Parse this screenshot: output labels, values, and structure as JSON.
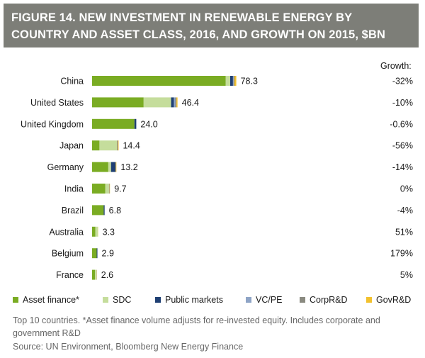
{
  "figure_title": "FIGURE 14. NEW INVESTMENT IN RENEWABLE ENERGY BY COUNTRY AND ASSET CLASS, 2016, AND GROWTH ON 2015, $BN",
  "growth_header": "Growth:",
  "note": "Top 10 countries. *Asset finance volume adjusts for re-invested equity. Includes corporate and government R&D",
  "source": "Source: UN Environment, Bloomberg New Energy Finance",
  "chart_data": {
    "type": "bar",
    "orientation": "horizontal",
    "stacked": true,
    "categories": [
      "China",
      "United States",
      "United Kingdom",
      "Japan",
      "Germany",
      "India",
      "Brazil",
      "Australia",
      "Belgium",
      "France"
    ],
    "totals": [
      "78.3",
      "46.4",
      "24.0",
      "14.4",
      "13.2",
      "9.7",
      "6.8",
      "3.3",
      "2.9",
      "2.6"
    ],
    "growth": [
      "-32%",
      "-10%",
      "-0.6%",
      "-56%",
      "-14%",
      "0%",
      "-4%",
      "51%",
      "179%",
      "5%"
    ],
    "series": [
      {
        "name": "Asset finance*",
        "color": "#7aac23",
        "values": [
          72.5,
          28.0,
          23.0,
          4.0,
          8.8,
          7.2,
          6.3,
          1.8,
          2.5,
          1.6
        ]
      },
      {
        "name": "SDC",
        "color": "#c5dd9c",
        "values": [
          2.5,
          14.9,
          0.0,
          9.5,
          1.5,
          2.0,
          0.0,
          1.4,
          0.0,
          0.8
        ]
      },
      {
        "name": "Public markets",
        "color": "#1f3f73",
        "values": [
          1.5,
          1.5,
          1.0,
          0.0,
          2.4,
          0.0,
          0.5,
          0.0,
          0.4,
          0.0
        ]
      },
      {
        "name": "VC/PE",
        "color": "#8ea4c6",
        "values": [
          0.3,
          0.8,
          0.0,
          0.0,
          0.0,
          0.0,
          0.0,
          0.0,
          0.0,
          0.0
        ]
      },
      {
        "name": "CorpR&D",
        "color": "#8a8a80",
        "values": [
          0.5,
          0.6,
          0.0,
          0.5,
          0.2,
          0.3,
          0.0,
          0.0,
          0.0,
          0.1
        ]
      },
      {
        "name": "GovR&D",
        "color": "#f2c12e",
        "values": [
          1.0,
          0.6,
          0.0,
          0.4,
          0.3,
          0.2,
          0.0,
          0.1,
          0.0,
          0.1
        ]
      }
    ],
    "xlim": [
      0,
      100
    ],
    "grid": false,
    "legend_position": "bottom"
  }
}
